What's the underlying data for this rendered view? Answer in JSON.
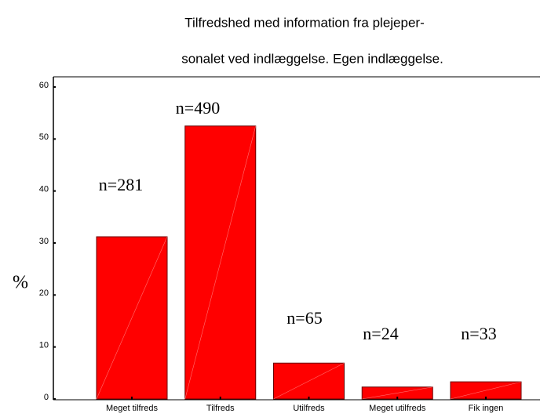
{
  "chart_data": {
    "type": "bar",
    "title": [
      "Tilfredshed med information fra plejeper-",
      "sonalet ved indlæggelse. Egen indlæggelse."
    ],
    "y_label": "%",
    "categories": [
      "Meget tilfreds",
      "Tilfreds",
      "Utilfreds",
      "Meget utilfreds",
      "Fik ingen"
    ],
    "values": [
      31.2,
      52.5,
      6.9,
      2.3,
      3.3
    ],
    "annotations": [
      "n=281",
      "n=490",
      "n=65",
      "n=24",
      "n=33"
    ],
    "color": "#ff0000",
    "ylim": [
      0,
      60
    ],
    "yticks": [
      0,
      10,
      20,
      30,
      40,
      50,
      60
    ],
    "grid": false
  }
}
